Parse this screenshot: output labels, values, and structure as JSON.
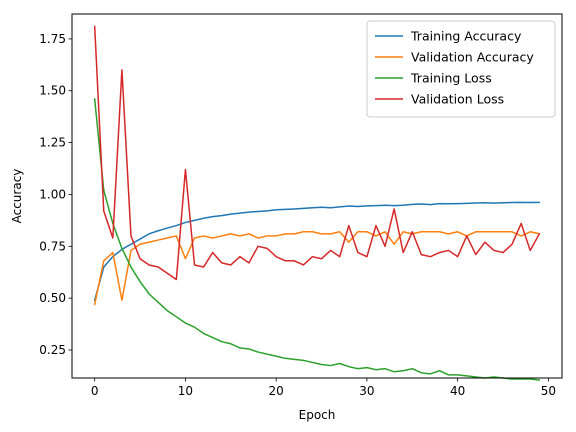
{
  "chart_data": {
    "type": "line",
    "title": "",
    "xlabel": "Epoch",
    "ylabel": "Accuracy",
    "xlim": [
      -2.5,
      51.5
    ],
    "ylim": [
      0.115,
      1.87
    ],
    "xticks": [
      0,
      10,
      20,
      30,
      40,
      50
    ],
    "xtick_labels": [
      "0",
      "10",
      "20",
      "30",
      "40",
      "50"
    ],
    "yticks": [
      0.25,
      0.5,
      0.75,
      1.0,
      1.25,
      1.5,
      1.75
    ],
    "ytick_labels": [
      "0.25",
      "0.50",
      "0.75",
      "1.00",
      "1.25",
      "1.50",
      "1.75"
    ],
    "grid": false,
    "legend_position": "top-right",
    "x": [
      0,
      1,
      2,
      3,
      4,
      5,
      6,
      7,
      8,
      9,
      10,
      11,
      12,
      13,
      14,
      15,
      16,
      17,
      18,
      19,
      20,
      21,
      22,
      23,
      24,
      25,
      26,
      27,
      28,
      29,
      30,
      31,
      32,
      33,
      34,
      35,
      36,
      37,
      38,
      39,
      40,
      41,
      42,
      43,
      44,
      45,
      46,
      47,
      48,
      49
    ],
    "series": [
      {
        "name": "Training Accuracy",
        "color": "#1f77b4",
        "values": [
          0.49,
          0.65,
          0.7,
          0.735,
          0.76,
          0.785,
          0.81,
          0.825,
          0.838,
          0.85,
          0.865,
          0.875,
          0.885,
          0.893,
          0.898,
          0.905,
          0.91,
          0.915,
          0.918,
          0.921,
          0.926,
          0.928,
          0.93,
          0.933,
          0.936,
          0.938,
          0.936,
          0.94,
          0.944,
          0.942,
          0.945,
          0.946,
          0.948,
          0.946,
          0.948,
          0.952,
          0.954,
          0.951,
          0.956,
          0.955,
          0.956,
          0.957,
          0.959,
          0.96,
          0.958,
          0.96,
          0.961,
          0.962,
          0.961,
          0.962
        ]
      },
      {
        "name": "Validation Accuracy",
        "color": "#ff7f0e",
        "values": [
          0.47,
          0.68,
          0.72,
          0.49,
          0.73,
          0.76,
          0.77,
          0.78,
          0.79,
          0.8,
          0.69,
          0.79,
          0.8,
          0.79,
          0.8,
          0.81,
          0.8,
          0.81,
          0.79,
          0.8,
          0.8,
          0.81,
          0.81,
          0.82,
          0.82,
          0.81,
          0.81,
          0.82,
          0.77,
          0.82,
          0.82,
          0.8,
          0.82,
          0.76,
          0.82,
          0.81,
          0.82,
          0.82,
          0.82,
          0.81,
          0.82,
          0.8,
          0.82,
          0.82,
          0.82,
          0.82,
          0.82,
          0.8,
          0.82,
          0.81
        ]
      },
      {
        "name": "Training Loss",
        "color": "#2ca02c",
        "values": [
          1.46,
          1.02,
          0.86,
          0.74,
          0.65,
          0.58,
          0.52,
          0.48,
          0.44,
          0.41,
          0.38,
          0.36,
          0.33,
          0.31,
          0.29,
          0.28,
          0.26,
          0.255,
          0.24,
          0.23,
          0.22,
          0.21,
          0.205,
          0.2,
          0.19,
          0.18,
          0.175,
          0.185,
          0.17,
          0.16,
          0.165,
          0.155,
          0.16,
          0.145,
          0.15,
          0.16,
          0.14,
          0.135,
          0.15,
          0.13,
          0.13,
          0.125,
          0.12,
          0.115,
          0.12,
          0.115,
          0.11,
          0.11,
          0.11,
          0.105
        ]
      },
      {
        "name": "Validation Loss",
        "color": "#d62728",
        "values": [
          1.81,
          0.92,
          0.79,
          1.6,
          0.8,
          0.69,
          0.66,
          0.65,
          0.62,
          0.59,
          1.12,
          0.66,
          0.65,
          0.72,
          0.67,
          0.66,
          0.7,
          0.67,
          0.75,
          0.74,
          0.7,
          0.68,
          0.68,
          0.66,
          0.7,
          0.69,
          0.73,
          0.7,
          0.85,
          0.72,
          0.7,
          0.85,
          0.75,
          0.93,
          0.72,
          0.82,
          0.71,
          0.7,
          0.72,
          0.73,
          0.7,
          0.8,
          0.71,
          0.77,
          0.73,
          0.72,
          0.76,
          0.86,
          0.73,
          0.81
        ]
      }
    ]
  }
}
